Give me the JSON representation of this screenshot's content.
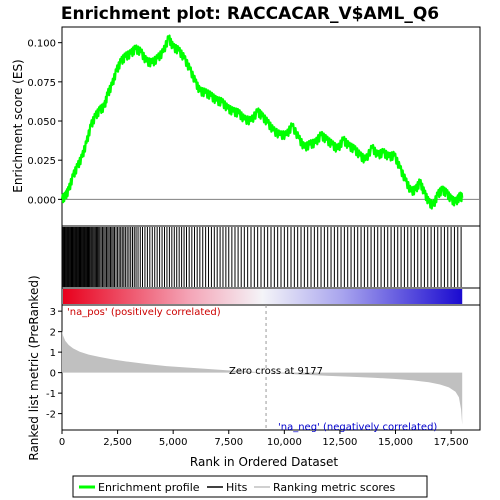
{
  "chart_data": {
    "type": "line",
    "title": "Enrichment plot: RACCACAR_V$AML_Q6",
    "xlabel": "Rank in Ordered Dataset",
    "top_ylabel": "Enrichment score (ES)",
    "bottom_ylabel": "Ranked list metric (PreRanked)",
    "x_range": [
      0,
      18800
    ],
    "x_ticks": [
      0,
      2500,
      5000,
      7500,
      10000,
      12500,
      15000,
      17500
    ],
    "x_tick_labels": [
      "0",
      "2,500",
      "5,000",
      "7,500",
      "10,000",
      "12,500",
      "15,000",
      "17,500"
    ],
    "es": {
      "ylim": [
        -0.017,
        0.11
      ],
      "y_ticks": [
        0.0,
        0.025,
        0.05,
        0.075,
        0.1
      ],
      "y_tick_labels": [
        "0.000",
        "0.025",
        "0.050",
        "0.075",
        "0.100"
      ],
      "series_name": "Enrichment profile",
      "color": "#00ff00",
      "points": [
        [
          0,
          0.0
        ],
        [
          150,
          0.002
        ],
        [
          300,
          0.006
        ],
        [
          500,
          0.015
        ],
        [
          700,
          0.021
        ],
        [
          900,
          0.027
        ],
        [
          1100,
          0.036
        ],
        [
          1300,
          0.047
        ],
        [
          1500,
          0.053
        ],
        [
          1700,
          0.057
        ],
        [
          1900,
          0.059
        ],
        [
          2050,
          0.067
        ],
        [
          2250,
          0.073
        ],
        [
          2450,
          0.082
        ],
        [
          2650,
          0.088
        ],
        [
          2850,
          0.091
        ],
        [
          3100,
          0.093
        ],
        [
          3300,
          0.096
        ],
        [
          3550,
          0.094
        ],
        [
          3800,
          0.088
        ],
        [
          4050,
          0.087
        ],
        [
          4300,
          0.09
        ],
        [
          4550,
          0.094
        ],
        [
          4800,
          0.103
        ],
        [
          5000,
          0.097
        ],
        [
          5250,
          0.095
        ],
        [
          5500,
          0.09
        ],
        [
          5750,
          0.083
        ],
        [
          6000,
          0.075
        ],
        [
          6200,
          0.069
        ],
        [
          6450,
          0.068
        ],
        [
          6700,
          0.066
        ],
        [
          6950,
          0.063
        ],
        [
          7200,
          0.062
        ],
        [
          7450,
          0.058
        ],
        [
          7700,
          0.056
        ],
        [
          7950,
          0.055
        ],
        [
          8200,
          0.051
        ],
        [
          8500,
          0.05
        ],
        [
          8800,
          0.056
        ],
        [
          9000,
          0.053
        ],
        [
          9250,
          0.049
        ],
        [
          9500,
          0.044
        ],
        [
          9800,
          0.041
        ],
        [
          10100,
          0.041
        ],
        [
          10350,
          0.047
        ],
        [
          10650,
          0.039
        ],
        [
          10900,
          0.033
        ],
        [
          11150,
          0.035
        ],
        [
          11400,
          0.036
        ],
        [
          11650,
          0.041
        ],
        [
          11900,
          0.038
        ],
        [
          12150,
          0.035
        ],
        [
          12400,
          0.032
        ],
        [
          12650,
          0.038
        ],
        [
          12900,
          0.034
        ],
        [
          13150,
          0.032
        ],
        [
          13400,
          0.028
        ],
        [
          13650,
          0.025
        ],
        [
          13950,
          0.033
        ],
        [
          14200,
          0.028
        ],
        [
          14450,
          0.03
        ],
        [
          14700,
          0.027
        ],
        [
          14950,
          0.028
        ],
        [
          15200,
          0.02
        ],
        [
          15450,
          0.012
        ],
        [
          15700,
          0.005
        ],
        [
          15900,
          0.006
        ],
        [
          16100,
          0.011
        ],
        [
          16300,
          0.004
        ],
        [
          16500,
          -0.002
        ],
        [
          16700,
          -0.004
        ],
        [
          16900,
          0.003
        ],
        [
          17100,
          0.006
        ],
        [
          17300,
          0.004
        ],
        [
          17500,
          0.0
        ],
        [
          17700,
          -0.002
        ],
        [
          17900,
          0.002
        ],
        [
          18000,
          0.001
        ]
      ]
    },
    "hits": {
      "series_name": "Hits",
      "color": "#000000",
      "positions": [
        20,
        60,
        95,
        130,
        170,
        210,
        250,
        290,
        330,
        370,
        410,
        450,
        490,
        530,
        570,
        610,
        650,
        690,
        730,
        770,
        810,
        850,
        890,
        930,
        970,
        1010,
        1050,
        1090,
        1130,
        1170,
        1210,
        1250,
        1300,
        1350,
        1400,
        1450,
        1500,
        1550,
        1600,
        1650,
        1700,
        1760,
        1820,
        1880,
        1940,
        2000,
        2060,
        2120,
        2180,
        2240,
        2300,
        2360,
        2430,
        2500,
        2570,
        2640,
        2710,
        2780,
        2850,
        2930,
        3010,
        3090,
        3170,
        3250,
        3330,
        3420,
        3520,
        3620,
        3730,
        3840,
        3950,
        4060,
        4170,
        4280,
        4390,
        4500,
        4610,
        4720,
        4830,
        4940,
        5050,
        5160,
        5270,
        5380,
        5490,
        5600,
        5720,
        5840,
        5960,
        6080,
        6200,
        6330,
        6460,
        6590,
        6720,
        6850,
        6980,
        7110,
        7240,
        7370,
        7500,
        7640,
        7780,
        7920,
        8060,
        8200,
        8350,
        8500,
        8650,
        8800,
        8950,
        9100,
        9250,
        9400,
        9550,
        9700,
        9850,
        10000,
        10150,
        10300,
        10450,
        10600,
        10750,
        10900,
        11050,
        11200,
        11350,
        11500,
        11650,
        11800,
        11950,
        12100,
        12250,
        12400,
        12550,
        12700,
        12850,
        13000,
        13150,
        13300,
        13450,
        13600,
        13750,
        13900,
        14050,
        14200,
        14350,
        14500,
        14650,
        14800,
        14950,
        15100,
        15250,
        15400,
        15550,
        15700,
        15850,
        16000,
        16150,
        16300,
        16450,
        16600,
        16750,
        16900,
        17050,
        17200,
        17350,
        17500,
        17650,
        17800,
        17950
      ]
    },
    "metric": {
      "series_name": "Ranking metric scores",
      "color": "#c0c0c0",
      "ylim": [
        -2.8,
        3.3
      ],
      "y_ticks": [
        -2,
        -1,
        0,
        1,
        2,
        3
      ],
      "y_tick_labels": [
        "-2",
        "-1",
        "0",
        "1",
        "2",
        "3"
      ],
      "points": [
        [
          0,
          2.05
        ],
        [
          50,
          1.8
        ],
        [
          150,
          1.55
        ],
        [
          300,
          1.35
        ],
        [
          500,
          1.18
        ],
        [
          800,
          1.02
        ],
        [
          1200,
          0.88
        ],
        [
          1700,
          0.76
        ],
        [
          2300,
          0.64
        ],
        [
          3000,
          0.53
        ],
        [
          3800,
          0.42
        ],
        [
          4700,
          0.32
        ],
        [
          5600,
          0.25
        ],
        [
          6500,
          0.18
        ],
        [
          7400,
          0.12
        ],
        [
          8300,
          0.06
        ],
        [
          9177,
          0.0
        ],
        [
          10000,
          -0.05
        ],
        [
          11000,
          -0.11
        ],
        [
          12000,
          -0.16
        ],
        [
          13000,
          -0.2
        ],
        [
          14000,
          -0.25
        ],
        [
          15000,
          -0.31
        ],
        [
          15800,
          -0.38
        ],
        [
          16500,
          -0.47
        ],
        [
          17000,
          -0.58
        ],
        [
          17400,
          -0.72
        ],
        [
          17700,
          -0.93
        ],
        [
          17850,
          -1.2
        ],
        [
          17950,
          -1.8
        ],
        [
          18000,
          -2.55
        ]
      ]
    },
    "labels": {
      "pos": "'na_pos' (positively correlated)",
      "neg": "'na_neg' (negatively correlated)",
      "zero_cross": "Zero cross at 9177"
    },
    "zero_cross": 9177,
    "legend": {
      "position": "bottom",
      "entries": [
        "Enrichment profile",
        "Hits",
        "Ranking metric scores"
      ]
    },
    "colorbar": {
      "pos_color": "#e8001c",
      "neg_color": "#1a0ad0",
      "mid_color": "#f4f4f8"
    }
  }
}
